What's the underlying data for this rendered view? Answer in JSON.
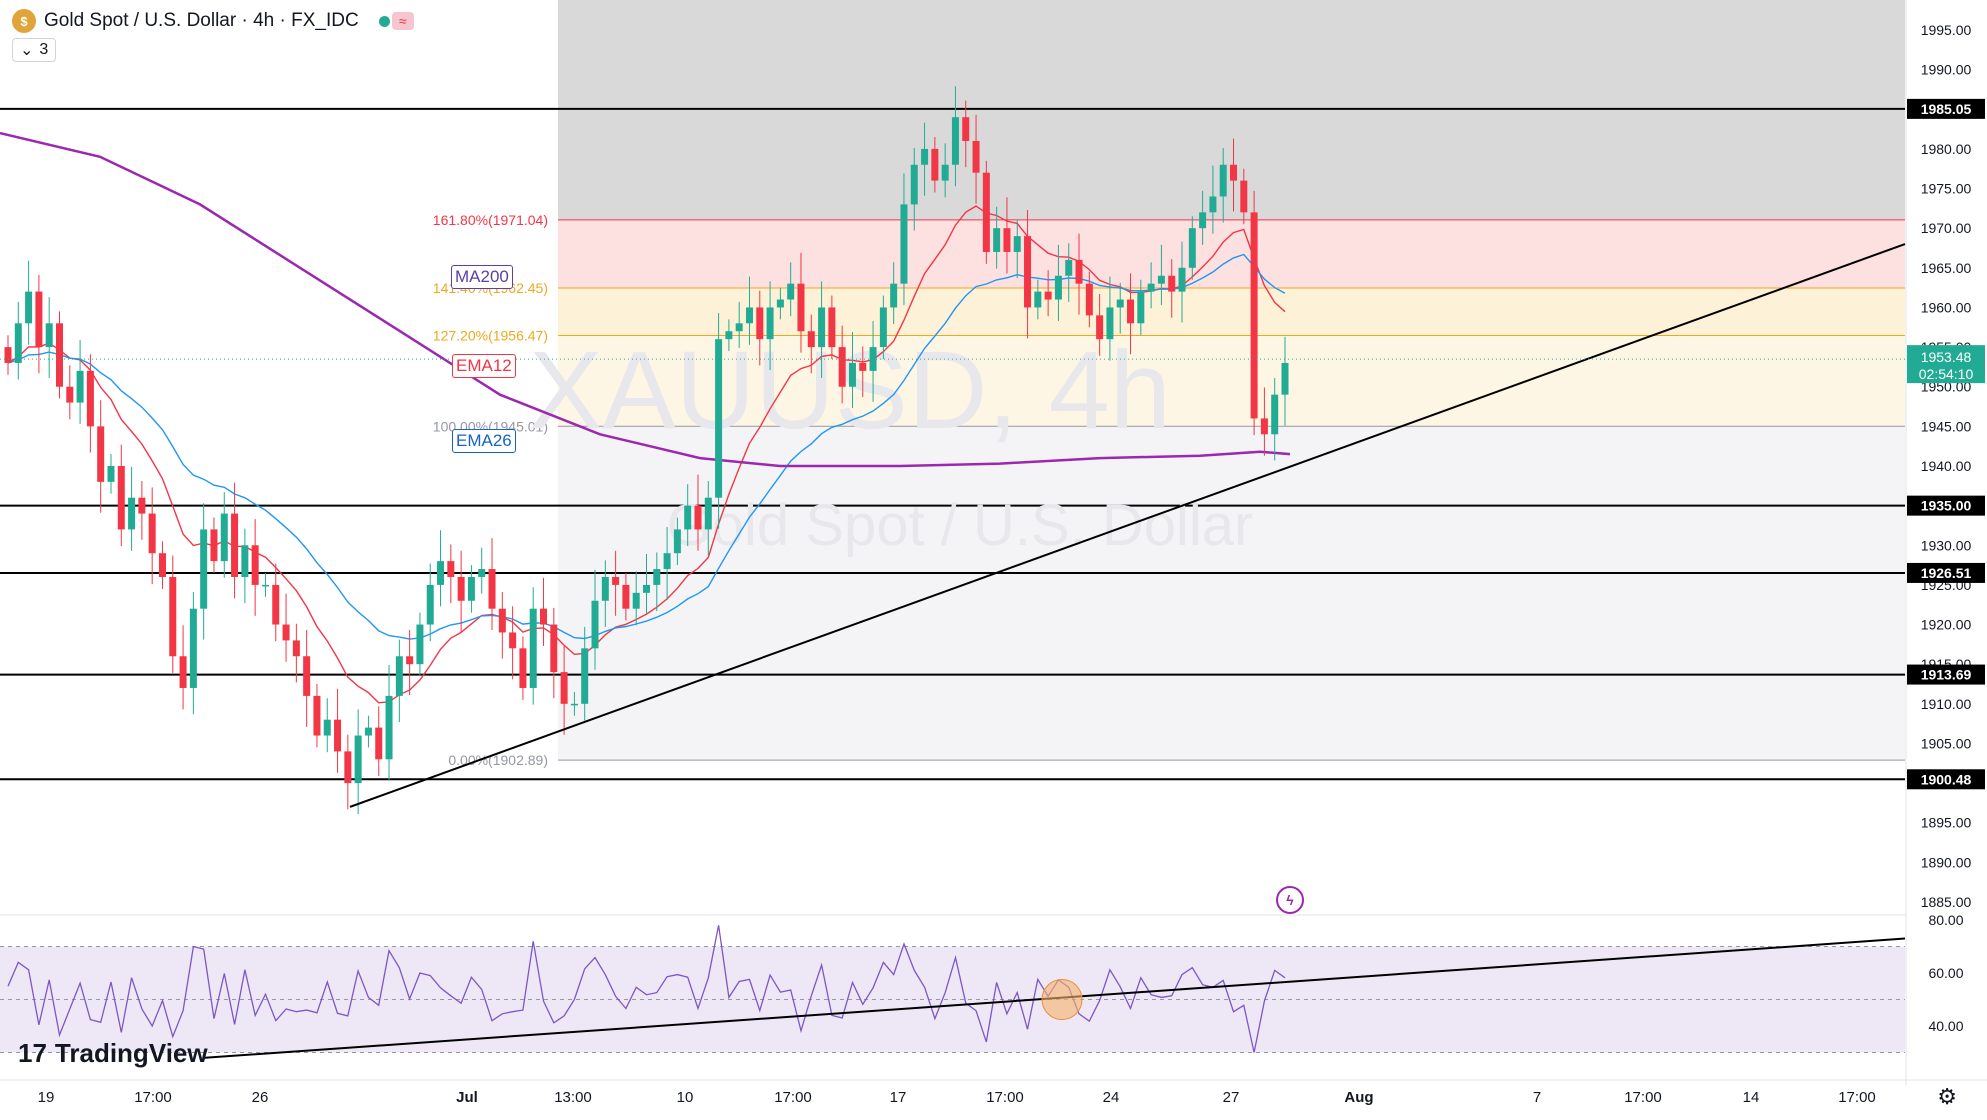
{
  "header": {
    "coin_symbol": "$",
    "title": "Gold Spot / U.S. Dollar · 4h · FX_IDC",
    "collapse_label": "3",
    "pill_text": "≈"
  },
  "watermark": {
    "symbol": "XAUUSD, 4h",
    "name": "Gold Spot / U.S. Dollar"
  },
  "indicators": {
    "ma200": "MA200",
    "ema12": "EMA12",
    "ema26": "EMA26"
  },
  "price_axis": {
    "ticks": [
      "1995.00",
      "1990.00",
      "1985.00",
      "1980.00",
      "1975.00",
      "1970.00",
      "1965.00",
      "1960.00",
      "1955.00",
      "1950.00",
      "1945.00",
      "1940.00",
      "1935.00",
      "1930.00",
      "1925.00",
      "1920.00",
      "1915.00",
      "1910.00",
      "1905.00",
      "1900.00",
      "1895.00",
      "1890.00",
      "1885.00"
    ],
    "current_price": "1953.48",
    "countdown": "02:54:10"
  },
  "horizontal_lines": [
    {
      "label": "1985.05",
      "value": 1985.05
    },
    {
      "label": "1935.00",
      "value": 1935.0
    },
    {
      "label": "1926.51",
      "value": 1926.51
    },
    {
      "label": "1913.69",
      "value": 1913.69
    },
    {
      "label": "1900.48",
      "value": 1900.48
    }
  ],
  "fibonacci": {
    "levels": [
      {
        "label": "161.80%(1971.04)",
        "value": 1971.04,
        "color": "#f23645"
      },
      {
        "label": "141.40%(1962.45)",
        "value": 1962.45,
        "color": "#f0a81e"
      },
      {
        "label": "127.20%(1956.47)",
        "value": 1956.47,
        "color": "#f0a81e"
      },
      {
        "label": "100.00%(1945.01)",
        "value": 1945.01,
        "color": "#9598a1"
      },
      {
        "label": "0.00%(1902.89)",
        "value": 1902.89,
        "color": "#9598a1"
      }
    ]
  },
  "rsi_axis": {
    "ticks": [
      "80.00",
      "60.00",
      "40.00"
    ]
  },
  "time_axis": {
    "labels": [
      "19",
      "17:00",
      "26",
      "Jul",
      "13:00",
      "10",
      "17:00",
      "17",
      "17:00",
      "24",
      "27",
      "Aug",
      "7",
      "17:00",
      "14",
      "17:00"
    ]
  },
  "branding": {
    "logo_text": "TradingView",
    "logo_mark": "17"
  },
  "colors": {
    "up": "#22ab94",
    "down": "#f23645",
    "ma200": "#9c27b0",
    "ema12": "#f23645",
    "ema26": "#2196f3",
    "rsi": "#7e57c2"
  },
  "chart_data": {
    "type": "candlestick",
    "symbol": "XAUUSD",
    "timeframe": "4h",
    "ylim": [
      1883,
      1998
    ],
    "ohlc_path": [
      1953,
      1958,
      1962,
      1955,
      1958,
      1950,
      1948,
      1952,
      1945,
      1938,
      1940,
      1932,
      1936,
      1934,
      1929,
      1926,
      1916,
      1912,
      1922,
      1932,
      1928,
      1934,
      1926,
      1930,
      1925,
      1925,
      1920,
      1918,
      1916,
      1911,
      1906,
      1908,
      1904,
      1900,
      1906,
      1907,
      1903,
      1911,
      1916,
      1915,
      1920,
      1925,
      1928,
      1926,
      1923,
      1926,
      1927,
      1922,
      1919,
      1917,
      1912,
      1922,
      1920,
      1914,
      1910,
      1910,
      1917,
      1923,
      1926,
      1925,
      1922,
      1924,
      1925,
      1927,
      1929,
      1932,
      1935,
      1932,
      1936,
      1956,
      1957,
      1958,
      1960,
      1956,
      1960,
      1961,
      1963,
      1957,
      1955,
      1960,
      1955,
      1950,
      1953,
      1952,
      1955,
      1960,
      1963,
      1973,
      1978,
      1980,
      1976,
      1978,
      1984,
      1981,
      1977,
      1967,
      1970,
      1967,
      1969,
      1960,
      1962,
      1961,
      1964,
      1966,
      1963,
      1959,
      1956,
      1960,
      1961,
      1958,
      1962,
      1963,
      1964,
      1962,
      1965,
      1970,
      1972,
      1974,
      1978,
      1976,
      1972,
      1946,
      1944,
      1949,
      1953
    ]
  }
}
